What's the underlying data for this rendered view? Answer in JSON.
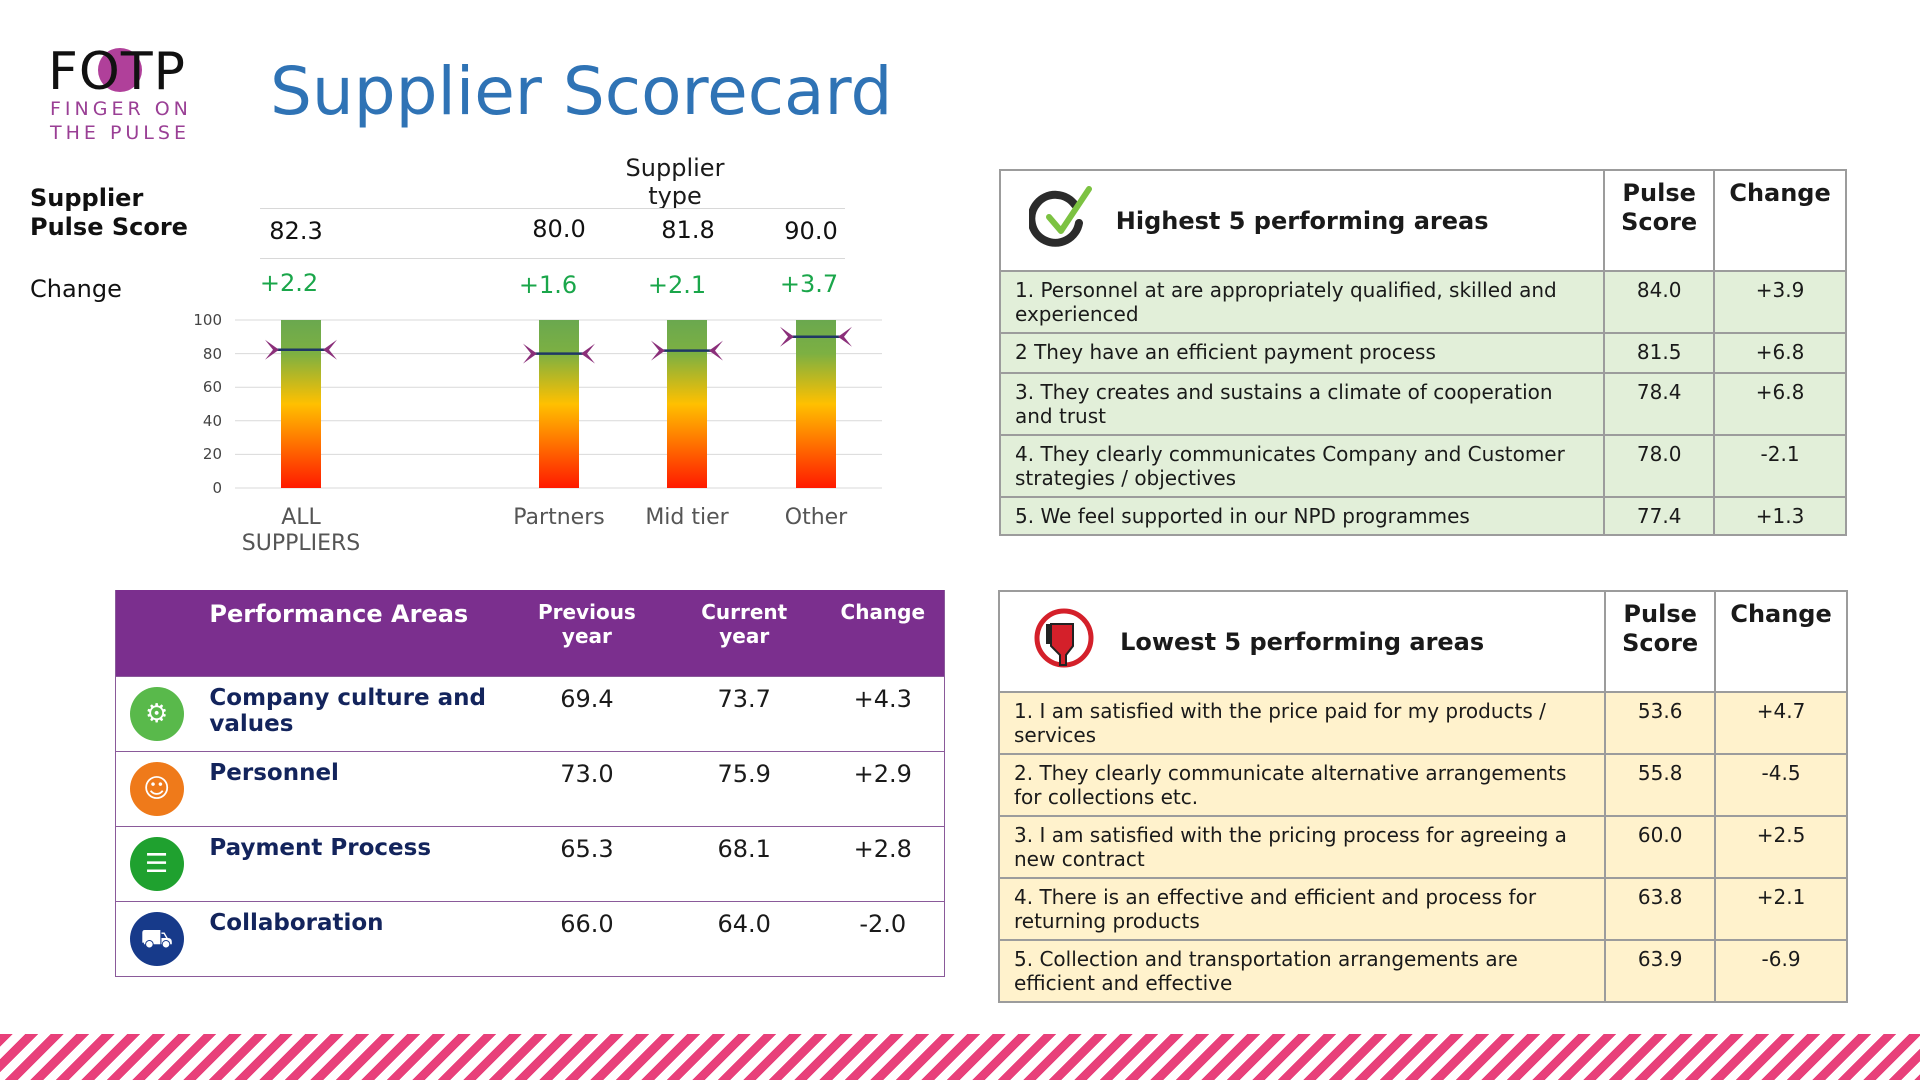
{
  "logo": {
    "main": "FOTP",
    "line1": "FINGER ON",
    "line2": "THE PULSE"
  },
  "title": "Supplier Scorecard",
  "chart_data": {
    "type": "bar",
    "title": "Supplier type",
    "categories": [
      "ALL SUPPLIERS",
      "Partners",
      "Mid tier",
      "Other"
    ],
    "category_lines": [
      [
        "ALL",
        "SUPPLIERS"
      ],
      [
        "Partners"
      ],
      [
        "Mid tier"
      ],
      [
        "Other"
      ]
    ],
    "values": [
      82.3,
      80.0,
      81.8,
      90.0
    ],
    "value_labels": [
      "82.3",
      "80.0",
      "81.8",
      "90.0"
    ],
    "changes": [
      "+2.2",
      "+1.6",
      "+2.1",
      "+3.7"
    ],
    "row_labels": {
      "score": "Supplier Pulse Score",
      "score_line1": "Supplier",
      "score_line2": "Pulse Score",
      "change": "Change"
    },
    "ylim": [
      0,
      100
    ],
    "yticks": [
      "100",
      "80",
      "60",
      "40",
      "20",
      "0"
    ],
    "gradient": [
      "#6aa84f",
      "#ffc000",
      "#ff1a00"
    ],
    "marker_color": "#8b2f7a",
    "grid": true
  },
  "performance": {
    "headers": [
      "Performance Areas",
      "Previous year",
      "Current year",
      "Change"
    ],
    "header_lines": {
      "prev": [
        "Previous",
        "year"
      ],
      "curr": [
        "Current",
        "year"
      ]
    },
    "rows": [
      {
        "name": "Company culture and values",
        "prev": "69.4",
        "curr": "73.7",
        "change": "+4.3",
        "icon": "culture-icon",
        "color": "#59b94b"
      },
      {
        "name": "Personnel",
        "prev": "73.0",
        "curr": "75.9",
        "change": "+2.9",
        "icon": "people-icon",
        "color": "#ef7a1a"
      },
      {
        "name": "Payment Process",
        "prev": "65.3",
        "curr": "68.1",
        "change": "+2.8",
        "icon": "document-icon",
        "color": "#1fa12f"
      },
      {
        "name": "Collaboration",
        "prev": "66.0",
        "curr": "64.0",
        "change": "-2.0",
        "icon": "truck-icon",
        "color": "#173a8a"
      }
    ]
  },
  "highest": {
    "title": "Highest 5 performing areas",
    "col_score": [
      "Pulse",
      "Score"
    ],
    "col_change": "Change",
    "rows": [
      {
        "text": "1. Personnel at are appropriately qualified, skilled and experienced",
        "score": "84.0",
        "change": "+3.9"
      },
      {
        "text": "2  They have an efficient payment process",
        "score": "81.5",
        "change": "+6.8"
      },
      {
        "text": "3. They creates and sustains a climate of cooperation and trust",
        "score": "78.4",
        "change": "+6.8"
      },
      {
        "text": "4. They clearly communicates Company and Customer strategies / objectives",
        "score": "78.0",
        "change": "-2.1"
      },
      {
        "text": "5. We feel supported in our NPD programmes",
        "score": "77.4",
        "change": "+1.3"
      }
    ]
  },
  "lowest": {
    "title": "Lowest 5 performing areas",
    "col_score": [
      "Pulse",
      "Score"
    ],
    "col_change": "Change",
    "rows": [
      {
        "text": "1. I am satisfied with the price paid for my products / services",
        "score": "53.6",
        "change": "+4.7"
      },
      {
        "text": "2. They clearly communicate alternative arrangements for collections etc.",
        "score": "55.8",
        "change": "-4.5"
      },
      {
        "text": "3. I am satisfied with the pricing process for agreeing a new contract",
        "score": "60.0",
        "change": "+2.5"
      },
      {
        "text": "4. There is an effective and efficient and process for returning products",
        "score": "63.8",
        "change": "+2.1"
      },
      {
        "text": "5. Collection and transportation arrangements are efficient and effective",
        "score": "63.9",
        "change": "-6.9"
      }
    ]
  }
}
